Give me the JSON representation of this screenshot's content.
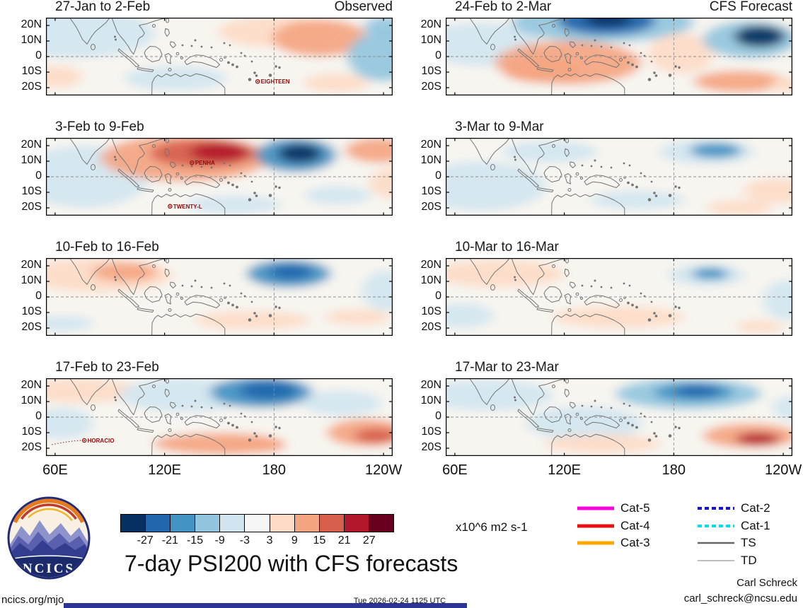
{
  "chart_data": {
    "type": "heatmap",
    "title": "7-day PSI200 with CFS forecasts",
    "units_label": "x10^6 m2 s-1",
    "x_tick_labels": [
      "60E",
      "120E",
      "180",
      "120W"
    ],
    "x_tick_lons": [
      60,
      120,
      180,
      240
    ],
    "y_tick_labels": [
      "20N",
      "10N",
      "0",
      "10S",
      "20S"
    ],
    "y_tick_lats": [
      20,
      10,
      0,
      -10,
      -20
    ],
    "lon_range": [
      55,
      245
    ],
    "lat_range": [
      25,
      -25
    ],
    "grid": {
      "equator_lat": 0,
      "dateline_lon": 180,
      "style": "dashed"
    },
    "colorbar": {
      "tick_labels": [
        "-27",
        "-21",
        "-15",
        "-9",
        "-3",
        "3",
        "9",
        "15",
        "21",
        "27"
      ],
      "thresholds": [
        -27,
        -21,
        -15,
        -9,
        -3,
        3,
        9,
        15,
        21,
        27
      ],
      "colors": [
        "#053061",
        "#2166ac",
        "#4393c3",
        "#92c5de",
        "#d1e5f0",
        "#f7f7f7",
        "#fddbc7",
        "#f4a582",
        "#d6604d",
        "#b2182b",
        "#67001f"
      ]
    },
    "columns": [
      {
        "corner_label": "Observed"
      },
      {
        "corner_label": "CFS Forecast"
      }
    ],
    "panels": [
      {
        "title": "27-Jan to 2-Feb",
        "col": 0,
        "row": 0,
        "anomalies": [
          [
            70,
            15,
            45,
            16,
            -7
          ],
          [
            61,
            -13,
            14,
            7,
            7
          ],
          [
            126,
            -14,
            28,
            8,
            -4
          ],
          [
            181,
            16,
            32,
            10,
            7
          ],
          [
            205,
            12,
            26,
            12,
            9
          ],
          [
            240,
            0,
            20,
            16,
            -10
          ],
          [
            242,
            19,
            13,
            7,
            -13
          ],
          [
            214,
            -17,
            18,
            6,
            6
          ]
        ],
        "storms": [
          {
            "name": "EIGHTEEN",
            "lon": 171,
            "lat": -16
          }
        ]
      },
      {
        "title": "24-Feb to 2-Mar",
        "col": 1,
        "row": 0,
        "anomalies": [
          [
            74,
            8,
            32,
            14,
            -6
          ],
          [
            141,
            22,
            50,
            13,
            -13
          ],
          [
            143,
            23,
            27,
            9,
            -22
          ],
          [
            144,
            24,
            13,
            5,
            -29
          ],
          [
            122,
            -4,
            40,
            14,
            9
          ],
          [
            108,
            -9,
            22,
            8,
            13
          ],
          [
            184,
            2,
            18,
            13,
            7
          ],
          [
            222,
            11,
            26,
            12,
            -15
          ],
          [
            227,
            13,
            14,
            7,
            -29
          ],
          [
            216,
            -16,
            25,
            7,
            10
          ],
          [
            246,
            -18,
            13,
            5,
            8
          ]
        ],
        "storms": []
      },
      {
        "title": "3-Feb to 9-Feb",
        "col": 0,
        "row": 1,
        "anomalies": [
          [
            76,
            0,
            36,
            20,
            -6
          ],
          [
            131,
            12,
            46,
            15,
            9
          ],
          [
            141,
            15,
            29,
            9,
            15
          ],
          [
            150,
            16,
            16,
            6,
            23
          ],
          [
            192,
            14,
            22,
            11,
            -16
          ],
          [
            194,
            15,
            12,
            6,
            -28
          ],
          [
            237,
            17,
            18,
            8,
            9
          ],
          [
            246,
            -4,
            14,
            10,
            6
          ],
          [
            158,
            -18,
            26,
            6,
            -5
          ],
          [
            215,
            -12,
            18,
            6,
            -5
          ]
        ],
        "storms": [
          {
            "name": "PENHA",
            "lon": 135,
            "lat": 9
          },
          {
            "name": "TWENTY-L",
            "lon": 123,
            "lat": -19
          }
        ]
      },
      {
        "title": "3-Mar to 9-Mar",
        "col": 1,
        "row": 1,
        "anomalies": [
          [
            74,
            -6,
            36,
            16,
            -5
          ],
          [
            112,
            16,
            26,
            7,
            -4
          ],
          [
            198,
            16,
            26,
            8,
            -8
          ],
          [
            203,
            17,
            14,
            5,
            -16
          ],
          [
            160,
            -15,
            26,
            6,
            -4
          ],
          [
            216,
            -20,
            18,
            5,
            6
          ],
          [
            238,
            -9,
            20,
            8,
            6
          ]
        ],
        "storms": []
      },
      {
        "title": "10-Feb to 16-Feb",
        "col": 0,
        "row": 2,
        "anomalies": [
          [
            84,
            14,
            40,
            11,
            6
          ],
          [
            98,
            16,
            18,
            6,
            10
          ],
          [
            188,
            15,
            23,
            9,
            -16
          ],
          [
            189,
            16,
            12,
            5,
            -24
          ],
          [
            168,
            -15,
            32,
            6,
            6
          ],
          [
            226,
            -13,
            18,
            5,
            5
          ],
          [
            242,
            4,
            14,
            13,
            -6
          ],
          [
            64,
            -17,
            17,
            5,
            -5
          ]
        ],
        "storms": []
      },
      {
        "title": "10-Mar to 16-Mar",
        "col": 1,
        "row": 2,
        "anomalies": [
          [
            84,
            15,
            36,
            9,
            5
          ],
          [
            198,
            14,
            21,
            7,
            -9
          ],
          [
            200,
            15,
            10,
            4,
            -16
          ],
          [
            150,
            -13,
            36,
            7,
            5
          ],
          [
            64,
            -12,
            17,
            8,
            -5
          ],
          [
            242,
            -2,
            13,
            13,
            -5
          ],
          [
            227,
            -19,
            13,
            4,
            6
          ]
        ],
        "storms": []
      },
      {
        "title": "17-Feb to 23-Feb",
        "col": 0,
        "row": 3,
        "anomalies": [
          [
            74,
            17,
            32,
            8,
            6
          ],
          [
            131,
            14,
            36,
            11,
            -7
          ],
          [
            173,
            16,
            28,
            10,
            -16
          ],
          [
            177,
            17,
            16,
            6,
            -23
          ],
          [
            217,
            9,
            22,
            8,
            -7
          ],
          [
            150,
            -17,
            36,
            7,
            9
          ],
          [
            168,
            -19,
            18,
            4,
            11
          ],
          [
            231,
            -10,
            22,
            9,
            11
          ],
          [
            236,
            -12,
            12,
            5,
            16
          ],
          [
            64,
            -4,
            17,
            10,
            -4
          ]
        ],
        "storms": [
          {
            "name": "HORACIO",
            "lon": 76,
            "lat": -15,
            "track": true
          }
        ]
      },
      {
        "title": "17-Mar to 23-Mar",
        "col": 1,
        "row": 3,
        "anomalies": [
          [
            78,
            14,
            36,
            10,
            -6
          ],
          [
            131,
            -4,
            32,
            11,
            -4
          ],
          [
            188,
            15,
            40,
            10,
            -11
          ],
          [
            191,
            16,
            22,
            6,
            -17
          ],
          [
            193,
            17,
            12,
            4,
            -22
          ],
          [
            141,
            -17,
            32,
            6,
            6
          ],
          [
            222,
            -12,
            26,
            8,
            11
          ],
          [
            226,
            -14,
            12,
            4,
            22
          ],
          [
            246,
            6,
            12,
            8,
            -6
          ]
        ],
        "storms": []
      }
    ],
    "legend": [
      {
        "label": "Cat-5",
        "color": "#ff00dc",
        "width": 5,
        "dash": ""
      },
      {
        "label": "Cat-4",
        "color": "#e81010",
        "width": 5,
        "dash": ""
      },
      {
        "label": "Cat-3",
        "color": "#ffa600",
        "width": 5,
        "dash": ""
      },
      {
        "label": "Cat-2",
        "color": "#1414d2",
        "width": 4,
        "dash": "6,4"
      },
      {
        "label": "Cat-1",
        "color": "#00dff0",
        "width": 4,
        "dash": "6,4"
      },
      {
        "label": "TS",
        "color": "#686868",
        "width": 2.5,
        "dash": ""
      },
      {
        "label": "TD",
        "color": "#aaaaaa",
        "width": 1.4,
        "dash": ""
      }
    ],
    "legend_columns": [
      [
        "Cat-5",
        "Cat-4",
        "Cat-3"
      ],
      [
        "Cat-2",
        "Cat-1",
        "TS",
        "TD"
      ]
    ]
  },
  "logo": {
    "label": "NCICS"
  },
  "footer": {
    "site": "ncics.org/mjo",
    "timestamp": "Tue 2026-02-24 1125 UTC",
    "credit_name": "Carl Schreck",
    "credit_email": "carl_schreck@ncsu.edu"
  }
}
